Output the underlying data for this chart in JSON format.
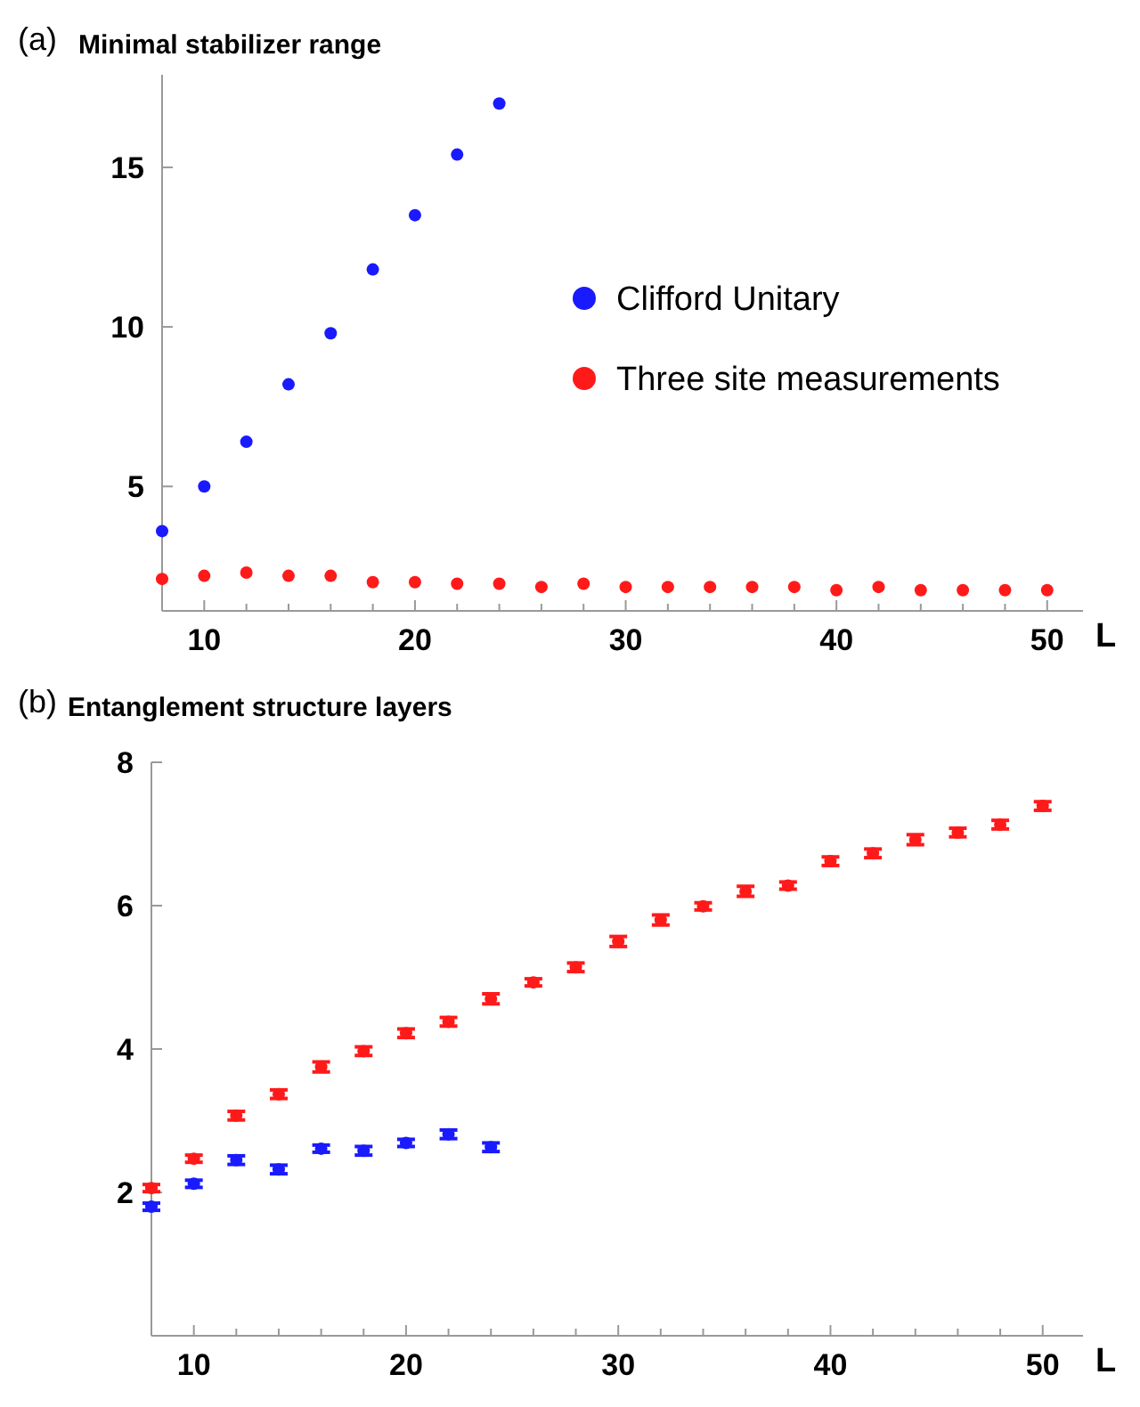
{
  "chart_data": [
    {
      "type": "scatter",
      "title": "Minimal stabilizer range",
      "xlabel": "L",
      "annotations": [
        "(a)"
      ],
      "marker": "circle",
      "legend": "right",
      "grid": false,
      "xlim": [
        8,
        51.7
      ],
      "xticks": [
        10,
        {
          "value": 12,
          "label": null
        },
        {
          "value": 14,
          "label": null
        },
        {
          "value": 16,
          "label": null
        },
        {
          "value": 18,
          "label": null
        },
        20,
        {
          "value": 22,
          "label": null
        },
        {
          "value": 24,
          "label": null
        },
        {
          "value": 26,
          "label": null
        },
        {
          "value": 28,
          "label": null
        },
        30,
        {
          "value": 32,
          "label": null
        },
        {
          "value": 34,
          "label": null
        },
        {
          "value": 36,
          "label": null
        },
        {
          "value": 38,
          "label": null
        },
        40,
        {
          "value": 42,
          "label": null
        },
        {
          "value": 44,
          "label": null
        },
        {
          "value": 46,
          "label": null
        },
        {
          "value": 48,
          "label": null
        },
        50
      ],
      "ylim": [
        1.1,
        17.9
      ],
      "yticks": [
        5,
        10,
        15
      ],
      "series": [
        {
          "name": "Clifford Unitary",
          "color": "#1a1aff",
          "x": [
            8,
            10,
            12,
            14,
            16,
            18,
            20,
            22,
            24
          ],
          "values": [
            3.6,
            5.0,
            6.4,
            8.2,
            9.8,
            11.8,
            13.5,
            15.4,
            17.0
          ]
        },
        {
          "name": "Three site measurements",
          "color": "#ff1a1a",
          "x": [
            8,
            10,
            12,
            14,
            16,
            18,
            20,
            22,
            24,
            26,
            28,
            30,
            32,
            34,
            36,
            38,
            40,
            42,
            44,
            46,
            48,
            50
          ],
          "values": [
            2.1,
            2.2,
            2.3,
            2.2,
            2.2,
            2.0,
            2.0,
            1.95,
            1.95,
            1.85,
            1.95,
            1.85,
            1.85,
            1.85,
            1.85,
            1.85,
            1.75,
            1.85,
            1.75,
            1.75,
            1.75,
            1.75
          ]
        }
      ]
    },
    {
      "type": "scatter",
      "title": "Entanglement structure layers",
      "xlabel": "L",
      "annotations": [
        "(b)"
      ],
      "marker": "circle",
      "legend": false,
      "grid": false,
      "xlim": [
        8,
        51.9
      ],
      "xticks": [
        10,
        {
          "value": 12,
          "label": null
        },
        {
          "value": 14,
          "label": null
        },
        {
          "value": 16,
          "label": null
        },
        {
          "value": 18,
          "label": null
        },
        20,
        {
          "value": 22,
          "label": null
        },
        {
          "value": 24,
          "label": null
        },
        {
          "value": 26,
          "label": null
        },
        {
          "value": 28,
          "label": null
        },
        30,
        {
          "value": 32,
          "label": null
        },
        {
          "value": 34,
          "label": null
        },
        {
          "value": 36,
          "label": null
        },
        {
          "value": 38,
          "label": null
        },
        40,
        {
          "value": 42,
          "label": null
        },
        {
          "value": 44,
          "label": null
        },
        {
          "value": 46,
          "label": null
        },
        {
          "value": 48,
          "label": null
        },
        50
      ],
      "ylim": [
        0,
        8
      ],
      "yticks": [
        2,
        4,
        6,
        8
      ],
      "series": [
        {
          "color": "#1a1aff",
          "x": [
            8,
            10,
            12,
            14,
            16,
            18,
            20,
            22,
            24
          ],
          "values": [
            1.8,
            2.12,
            2.45,
            2.32,
            2.61,
            2.58,
            2.69,
            2.81,
            2.63
          ],
          "errors": [
            0.05,
            0.05,
            0.06,
            0.06,
            0.05,
            0.06,
            0.05,
            0.06,
            0.06
          ]
        },
        {
          "color": "#ff1a1a",
          "x": [
            8,
            10,
            12,
            14,
            16,
            18,
            20,
            22,
            24,
            26,
            28,
            30,
            32,
            34,
            36,
            38,
            40,
            42,
            44,
            46,
            48,
            50
          ],
          "values": [
            2.06,
            2.47,
            3.07,
            3.37,
            3.75,
            3.97,
            4.22,
            4.38,
            4.7,
            4.93,
            5.14,
            5.5,
            5.8,
            5.99,
            6.2,
            6.28,
            6.62,
            6.73,
            6.92,
            7.02,
            7.13,
            7.39
          ],
          "errors": [
            0.05,
            0.05,
            0.06,
            0.06,
            0.07,
            0.06,
            0.06,
            0.06,
            0.07,
            0.05,
            0.06,
            0.07,
            0.07,
            0.05,
            0.07,
            0.05,
            0.06,
            0.06,
            0.07,
            0.06,
            0.06,
            0.06
          ]
        }
      ]
    }
  ]
}
